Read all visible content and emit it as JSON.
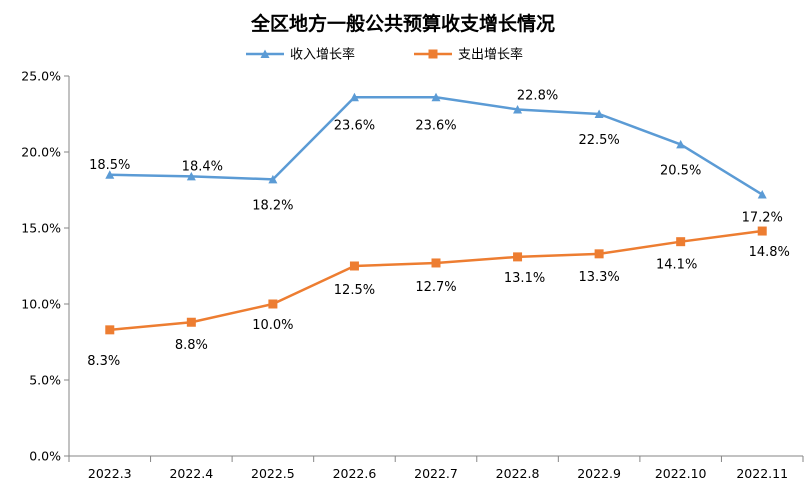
{
  "chart_data": {
    "type": "line",
    "title": "全区地方一般公共预算收支增长情况",
    "xlabel": "",
    "ylabel": "",
    "categories": [
      "2022.3",
      "2022.4",
      "2022.5",
      "2022.6",
      "2022.7",
      "2022.8",
      "2022.9",
      "2022.10",
      "2022.11"
    ],
    "ylim": [
      0,
      25
    ],
    "yticks": [
      "0.0%",
      "5.0%",
      "10.0%",
      "15.0%",
      "20.0%",
      "25.0%"
    ],
    "grid": false,
    "legend_position": "top-center",
    "series": [
      {
        "name": "收入增长率",
        "color": "#5B9BD5",
        "marker": "triangle",
        "values": [
          18.5,
          18.4,
          18.2,
          23.6,
          23.6,
          22.8,
          22.5,
          20.5,
          17.2
        ],
        "labels": [
          "18.5%",
          "18.4%",
          "18.2%",
          "23.6%",
          "23.6%",
          "22.8%",
          "22.5%",
          "20.5%",
          "17.2%"
        ]
      },
      {
        "name": "支出增长率",
        "color": "#ED7D31",
        "marker": "square",
        "values": [
          8.3,
          8.8,
          10.0,
          12.5,
          12.7,
          13.1,
          13.3,
          14.1,
          14.8
        ],
        "labels": [
          "8.3%",
          "8.8%",
          "10.0%",
          "12.5%",
          "12.7%",
          "13.1%",
          "13.3%",
          "14.1%",
          "14.8%"
        ]
      }
    ]
  }
}
